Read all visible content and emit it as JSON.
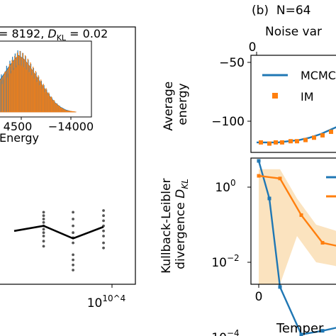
{
  "colors": {
    "blue": "#1f77b4",
    "orange": "#ff7f0e",
    "black": "#000000",
    "gray": "#555555",
    "band_orange": "#fbe0b8",
    "band_blue": "#c5cbe8"
  },
  "chart_data": [
    {
      "id": "left-main",
      "type": "line",
      "note": "cropped panel (a); dots are individual runs, black line is the mean",
      "x_scale": "log",
      "xtick_labels": [
        "10^4"
      ],
      "line": {
        "x": [
          1000,
          2000,
          4000,
          8192
        ],
        "y": [
          0.4,
          0.55,
          0.18,
          0.52
        ]
      },
      "dots": [
        {
          "x": 2000,
          "ys": [
            0.95,
            0.85,
            0.75,
            0.65,
            0.55,
            0.45,
            0.35,
            0.25,
            0.1,
            -0.05
          ]
        },
        {
          "x": 4000,
          "ys": [
            0.95,
            0.75,
            0.55,
            0.35,
            0.2,
            0.05,
            -0.3,
            -0.45,
            -0.6,
            -0.75
          ]
        },
        {
          "x": 8192,
          "ys": [
            1.0,
            0.85,
            0.7,
            0.55,
            0.4,
            0.25,
            0.05,
            -0.1
          ]
        }
      ]
    },
    {
      "id": "left-inset",
      "type": "area",
      "title": "= 8192, D_KL = 0.02",
      "xlabel": "Energy",
      "xtick_labels": [
        "4500",
        "−14000"
      ],
      "x": [
        -14700,
        -14600,
        -14550,
        -14500,
        -14450,
        -14400,
        -14350,
        -14300,
        -14250,
        -14200,
        -14150,
        -14100,
        -14050,
        -14000,
        -13950
      ],
      "series": [
        {
          "color": "blue",
          "values": [
            40,
            62,
            72,
            80,
            75,
            66,
            55,
            44,
            33,
            22,
            13,
            7,
            3,
            1,
            0
          ]
        },
        {
          "color": "orange",
          "values": [
            38,
            60,
            71,
            79,
            74,
            65,
            54,
            43,
            32,
            21,
            12,
            6,
            2,
            1,
            0
          ]
        }
      ]
    },
    {
      "id": "right-top",
      "type": "line",
      "panel_title": "(b)  N=64",
      "subtitle": "Noise var",
      "top_tick": "0",
      "ylabel": "Average\nenergy",
      "ylim": [
        -125,
        -45
      ],
      "yticks": [
        -50,
        -100
      ],
      "ytick_labels": [
        "−50",
        "−100"
      ],
      "series": [
        {
          "name": "MCMC",
          "color": "blue",
          "x": [
            0,
            0.5,
            1,
            1.5,
            2,
            2.5,
            3,
            3.5,
            4,
            4.5,
            5
          ],
          "y": [
            -118,
            -118,
            -118,
            -117,
            -116,
            -114,
            -111,
            -107,
            -103,
            -98,
            -92
          ]
        },
        {
          "name": "IM",
          "color": "orange",
          "style": "markers",
          "x": [
            0.2,
            0.6,
            0.9,
            1.2,
            1.6,
            1.9,
            2.3,
            2.7,
            3.1,
            3.5,
            3.9,
            4.3,
            4.7
          ],
          "y": [
            -118,
            -119,
            -118,
            -118,
            -117,
            -117,
            -116,
            -114,
            -112,
            -109,
            -106,
            -102,
            -98
          ]
        }
      ]
    },
    {
      "id": "right-bottom",
      "type": "line",
      "ylabel": "Kullback-Leibler\ndivergence D_KL",
      "y_scale": "log",
      "ylim": [
        1.5e-05,
        10
      ],
      "yticks": [
        1,
        0.01,
        0.0001
      ],
      "ytick_labels": [
        [
          "10",
          "0"
        ],
        [
          "10",
          "−2"
        ],
        [
          "10",
          "−4"
        ]
      ],
      "xtick_labels": [
        "0"
      ],
      "xlabel": "Temper",
      "series": [
        {
          "color": "blue",
          "x": [
            0,
            0.5,
            1,
            2,
            3,
            4,
            5
          ],
          "y": [
            5,
            0.5,
            0.0022,
            0.00012,
            0.00015,
            0.0002,
            0.00022
          ]
        },
        {
          "color": "orange",
          "x": [
            0,
            1,
            2,
            3,
            4,
            5
          ],
          "y": [
            2,
            1.7,
            0.18,
            0.033,
            0.025,
            0.009
          ]
        }
      ],
      "bands": [
        {
          "color": "band_orange",
          "x": [
            0,
            1,
            1.8,
            2.7,
            3.6,
            5
          ],
          "lo": [
            1.5e-05,
            1.5e-05,
            0.05,
            0.01,
            0.008,
            0.003
          ],
          "hi": [
            3,
            3,
            0.5,
            0.1,
            0.07,
            0.02
          ]
        },
        {
          "color": "band_blue",
          "x": [
            2,
            3,
            4,
            5
          ],
          "lo": [
            6e-05,
            9e-05,
            0.00012,
            0.00013
          ],
          "hi": [
            0.0003,
            0.00025,
            0.0003,
            0.0003
          ]
        }
      ]
    }
  ]
}
